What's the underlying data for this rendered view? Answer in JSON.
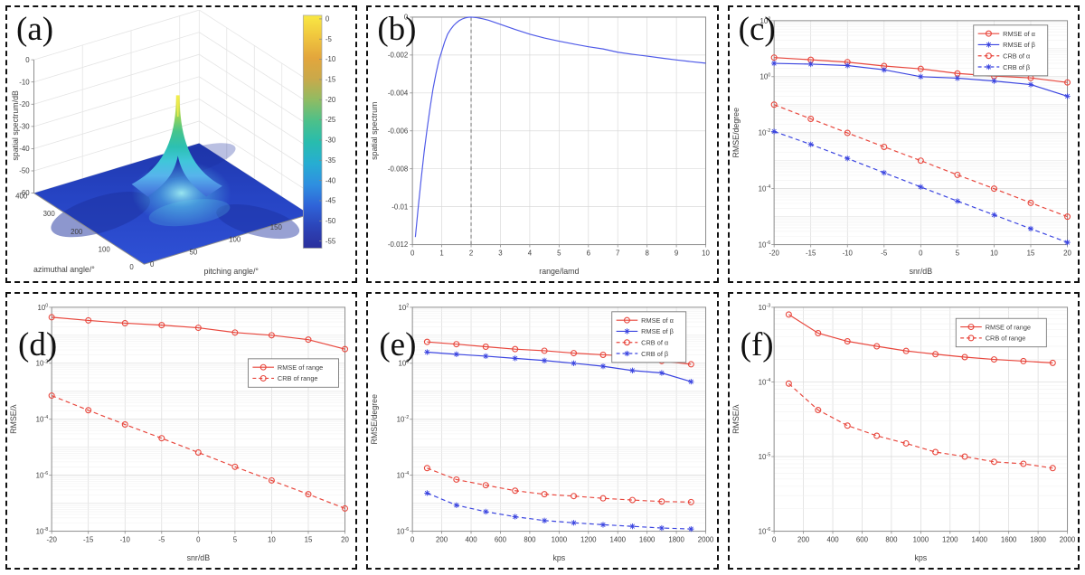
{
  "figure": {
    "accent_red": "#e8463c",
    "accent_blue": "#3a44e0",
    "line_blue": "#4f5ae8",
    "grid_color": "#d9d9d9",
    "minor_grid_color": "#f0f0f0",
    "axis_color": "#8c8c8c",
    "text_color": "#3f3f3f",
    "vline_color": "#666666",
    "surface_colors": {
      "floor_front": "#2f51d6",
      "floor_back": "#1f37ac",
      "dark_patch": "#1b2f9e",
      "skirt": "#9feef2",
      "peak_top": "#f4ee4e"
    },
    "colorbar_gradient": [
      "#f9e843",
      "#f0c63e",
      "#e3a63c",
      "#c9a94a",
      "#8fbc63",
      "#4cc08a",
      "#28bcae",
      "#27add2",
      "#2f8fe0",
      "#2f63d8",
      "#2c44b8",
      "#2b2f9c"
    ]
  },
  "chart_data": [
    {
      "id": "a",
      "panel_label": "(a)",
      "type": "surface3d",
      "zlabel": "spatial spectrum/dB",
      "xlabel": "azimuthal angle/°",
      "ylabel": "pitching angle/°",
      "z_ticks": [
        0,
        -10,
        -20,
        -30,
        -40,
        -50,
        -60
      ],
      "x_ticks": [
        400,
        300,
        200,
        100,
        0
      ],
      "y_ticks": [
        0,
        50,
        100,
        150
      ],
      "colorbar_ticks": [
        0,
        -5,
        -10,
        -15,
        -20,
        -25,
        -30,
        -35,
        -40,
        -45,
        -50,
        -55
      ],
      "peak": {
        "azimuth": 200,
        "pitch": 75,
        "peak_db": 0,
        "floor_db": -55
      }
    },
    {
      "id": "b",
      "panel_label": "(b)",
      "type": "line",
      "xlabel": "range/lamd",
      "ylabel": "spatial spectrum",
      "xlim": [
        0,
        10
      ],
      "ylim": [
        -0.012,
        0
      ],
      "x_ticks": [
        0,
        1,
        2,
        3,
        4,
        5,
        6,
        7,
        8,
        9,
        10
      ],
      "y_ticks": [
        0,
        -0.002,
        -0.004,
        -0.006,
        -0.008,
        -0.01,
        -0.012
      ],
      "vline_x": 2,
      "series": [
        {
          "name": "",
          "color": "blue_line",
          "dash": false,
          "marker": "none",
          "x": [
            0.1,
            0.2,
            0.3,
            0.4,
            0.5,
            0.6,
            0.7,
            0.8,
            0.9,
            1.0,
            1.1,
            1.2,
            1.3,
            1.4,
            1.5,
            1.6,
            1.7,
            1.8,
            1.9,
            2.0,
            2.2,
            2.4,
            2.6,
            2.8,
            3.0,
            3.5,
            4.0,
            4.5,
            5.0,
            5.5,
            6.0,
            6.5,
            7.0,
            7.5,
            8.0,
            8.5,
            9.0,
            9.5,
            10.0
          ],
          "y": [
            -0.0116,
            -0.01,
            -0.0085,
            -0.0071,
            -0.0059,
            -0.0048,
            -0.0038,
            -0.003,
            -0.0023,
            -0.0018,
            -0.0013,
            -0.0009,
            -0.00065,
            -0.00045,
            -0.0003,
            -0.00018,
            -0.0001,
            -4e-05,
            -1e-05,
            0,
            -3e-05,
            -9e-05,
            -0.00017,
            -0.00027,
            -0.00038,
            -0.00065,
            -0.0009,
            -0.0011,
            -0.00127,
            -0.00142,
            -0.00156,
            -0.00168,
            -0.00185,
            -0.00196,
            -0.00206,
            -0.00216,
            -0.00226,
            -0.00235,
            -0.00243
          ]
        }
      ]
    },
    {
      "id": "c",
      "panel_label": "(c)",
      "type": "linelog",
      "xlabel": "snr/dB",
      "ylabel": "RMSE/degree",
      "xlim": [
        -20,
        20
      ],
      "x_ticks": [
        -20,
        -15,
        -10,
        -5,
        0,
        5,
        10,
        15,
        20
      ],
      "ylog_range": [
        -6,
        2
      ],
      "y_ticks_exp": [
        2,
        0,
        -2,
        -4,
        -6
      ],
      "legend": {
        "x": 0.68,
        "y": 0.02
      },
      "series": [
        {
          "name": "RMSE of α",
          "color": "red",
          "dash": false,
          "marker": "circle",
          "x": [
            -20,
            -15,
            -10,
            -5,
            0,
            5,
            10,
            15,
            20
          ],
          "y": [
            4.8,
            4.0,
            3.3,
            2.4,
            1.9,
            1.3,
            1.05,
            0.9,
            0.62
          ]
        },
        {
          "name": "RMSE of β",
          "color": "blue",
          "dash": false,
          "marker": "asterisk",
          "x": [
            -20,
            -15,
            -10,
            -5,
            0,
            5,
            10,
            15,
            20
          ],
          "y": [
            3.0,
            2.8,
            2.5,
            1.75,
            1.0,
            0.88,
            0.7,
            0.52,
            0.2
          ]
        },
        {
          "name": "CRB of α",
          "color": "red",
          "dash": true,
          "marker": "circle",
          "x": [
            -20,
            -15,
            -10,
            -5,
            0,
            5,
            10,
            15,
            20
          ],
          "y": [
            0.1,
            0.031,
            0.0098,
            0.0031,
            0.001,
            0.00031,
            0.0001,
            3.1e-05,
            1e-05
          ]
        },
        {
          "name": "CRB of β",
          "color": "blue",
          "dash": true,
          "marker": "asterisk",
          "x": [
            -20,
            -15,
            -10,
            -5,
            0,
            5,
            10,
            15,
            20
          ],
          "y": [
            0.011,
            0.0038,
            0.0012,
            0.00037,
            0.000115,
            3.6e-05,
            1.15e-05,
            3.7e-06,
            1.2e-06
          ]
        }
      ]
    },
    {
      "id": "d",
      "panel_label": "(d)",
      "type": "linelog",
      "xlabel": "snr/dB",
      "ylabel": "RMSE/λ",
      "xlim": [
        -20,
        20
      ],
      "x_ticks": [
        -20,
        -15,
        -10,
        -5,
        0,
        5,
        10,
        15,
        20
      ],
      "ylog_range": [
        -8,
        0
      ],
      "y_ticks_exp": [
        0,
        -2,
        -4,
        -6,
        -8
      ],
      "legend": {
        "x": 0.67,
        "y": 0.23
      },
      "series": [
        {
          "name": "RMSE of range",
          "color": "red",
          "dash": false,
          "marker": "circle",
          "x": [
            -20,
            -15,
            -10,
            -5,
            0,
            5,
            10,
            15,
            20
          ],
          "y": [
            0.44,
            0.34,
            0.27,
            0.23,
            0.185,
            0.125,
            0.1,
            0.07,
            0.032
          ]
        },
        {
          "name": "CRB of range",
          "color": "red",
          "dash": true,
          "marker": "circle",
          "x": [
            -20,
            -15,
            -10,
            -5,
            0,
            5,
            10,
            15,
            20
          ],
          "y": [
            0.0007,
            0.00021,
            6.5e-05,
            2.1e-05,
            6.5e-06,
            2e-06,
            6.5e-07,
            2.1e-07,
            6.5e-08
          ]
        }
      ]
    },
    {
      "id": "e",
      "panel_label": "(e)",
      "type": "linelog",
      "xlabel": "kps",
      "ylabel": "RMSE/degree",
      "xlim": [
        0,
        2000
      ],
      "x_ticks": [
        0,
        200,
        400,
        600,
        800,
        1000,
        1200,
        1400,
        1600,
        1800,
        2000
      ],
      "ylog_range": [
        -6,
        2
      ],
      "y_ticks_exp": [
        2,
        0,
        -2,
        -4,
        -6
      ],
      "legend": {
        "x": 0.68,
        "y": 0.02
      },
      "series": [
        {
          "name": "RMSE of α",
          "color": "red",
          "dash": false,
          "marker": "circle",
          "x": [
            100,
            300,
            500,
            700,
            900,
            1100,
            1300,
            1500,
            1700,
            1900
          ],
          "y": [
            5.8,
            4.8,
            3.9,
            3.2,
            2.8,
            2.3,
            2.0,
            1.8,
            1.2,
            0.92
          ]
        },
        {
          "name": "RMSE of β",
          "color": "blue",
          "dash": false,
          "marker": "asterisk",
          "x": [
            100,
            300,
            500,
            700,
            900,
            1100,
            1300,
            1500,
            1700,
            1900
          ],
          "y": [
            2.5,
            2.1,
            1.8,
            1.5,
            1.25,
            1.0,
            0.78,
            0.55,
            0.45,
            0.22
          ]
        },
        {
          "name": "CRB of α",
          "color": "red",
          "dash": true,
          "marker": "circle",
          "x": [
            100,
            300,
            500,
            700,
            900,
            1100,
            1300,
            1500,
            1700,
            1900
          ],
          "y": [
            0.00018,
            7e-05,
            4.4e-05,
            2.8e-05,
            2.1e-05,
            1.8e-05,
            1.5e-05,
            1.3e-05,
            1.15e-05,
            1.1e-05
          ]
        },
        {
          "name": "CRB of β",
          "color": "blue",
          "dash": true,
          "marker": "asterisk",
          "x": [
            100,
            300,
            500,
            700,
            900,
            1100,
            1300,
            1500,
            1700,
            1900
          ],
          "y": [
            2.3e-05,
            8.5e-06,
            5e-06,
            3.3e-06,
            2.4e-06,
            2e-06,
            1.7e-06,
            1.5e-06,
            1.3e-06,
            1.2e-06
          ]
        }
      ]
    },
    {
      "id": "f",
      "panel_label": "(f)",
      "type": "linelog",
      "xlabel": "kps",
      "ylabel": "RMSE/λ",
      "xlim": [
        0,
        2000
      ],
      "x_ticks": [
        0,
        200,
        400,
        600,
        800,
        1000,
        1200,
        1400,
        1600,
        1800,
        2000
      ],
      "ylog_range": [
        -6,
        -3
      ],
      "y_ticks_exp": [
        -3,
        -4,
        -5,
        -6
      ],
      "legend": {
        "x": 0.62,
        "y": 0.05
      },
      "series": [
        {
          "name": "RMSE of range",
          "color": "red",
          "dash": false,
          "marker": "circle",
          "x": [
            100,
            300,
            500,
            700,
            900,
            1100,
            1300,
            1500,
            1700,
            1900
          ],
          "y": [
            0.0008,
            0.00045,
            0.00035,
            0.0003,
            0.00026,
            0.000235,
            0.000215,
            0.0002,
            0.00019,
            0.00018
          ]
        },
        {
          "name": "CRB of range",
          "color": "red",
          "dash": true,
          "marker": "circle",
          "x": [
            100,
            300,
            500,
            700,
            900,
            1100,
            1300,
            1500,
            1700,
            1900
          ],
          "y": [
            9.5e-05,
            4.2e-05,
            2.6e-05,
            1.9e-05,
            1.5e-05,
            1.15e-05,
            1e-05,
            8.5e-06,
            8e-06,
            7e-06
          ]
        }
      ]
    }
  ]
}
